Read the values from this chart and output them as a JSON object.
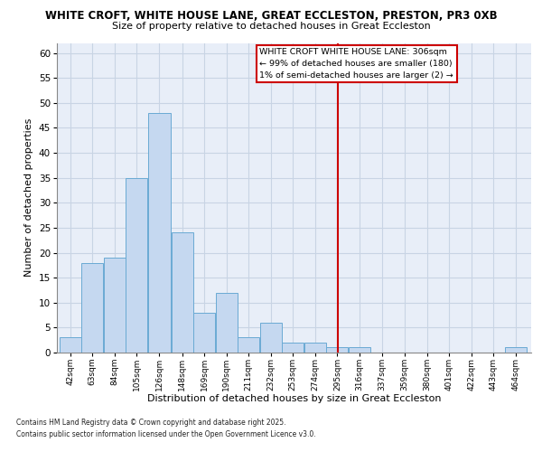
{
  "title": "WHITE CROFT, WHITE HOUSE LANE, GREAT ECCLESTON, PRESTON, PR3 0XB",
  "subtitle": "Size of property relative to detached houses in Great Eccleston",
  "xlabel": "Distribution of detached houses by size in Great Eccleston",
  "ylabel": "Number of detached properties",
  "bin_labels": [
    "42sqm",
    "63sqm",
    "84sqm",
    "105sqm",
    "126sqm",
    "148sqm",
    "169sqm",
    "190sqm",
    "211sqm",
    "232sqm",
    "253sqm",
    "274sqm",
    "295sqm",
    "316sqm",
    "337sqm",
    "359sqm",
    "380sqm",
    "401sqm",
    "422sqm",
    "443sqm",
    "464sqm"
  ],
  "bar_heights": [
    3,
    18,
    19,
    35,
    48,
    24,
    8,
    12,
    3,
    6,
    2,
    2,
    1,
    1,
    0,
    0,
    0,
    0,
    0,
    0,
    1
  ],
  "bar_color": "#c5d8f0",
  "bar_edge_color": "#6aaad4",
  "grid_color": "#c8d4e4",
  "background_color": "#e8eef8",
  "vline_x": 306,
  "vline_color": "#cc0000",
  "bin_edges": [
    42,
    63,
    84,
    105,
    126,
    148,
    169,
    190,
    211,
    232,
    253,
    274,
    295,
    316,
    337,
    359,
    380,
    401,
    422,
    443,
    464,
    485
  ],
  "ylim": [
    0,
    62
  ],
  "yticks": [
    0,
    5,
    10,
    15,
    20,
    25,
    30,
    35,
    40,
    45,
    50,
    55,
    60
  ],
  "annotation_text": "WHITE CROFT WHITE HOUSE LANE: 306sqm\n← 99% of detached houses are smaller (180)\n1% of semi-detached houses are larger (2) →",
  "footnote1": "Contains HM Land Registry data © Crown copyright and database right 2025.",
  "footnote2": "Contains public sector information licensed under the Open Government Licence v3.0."
}
